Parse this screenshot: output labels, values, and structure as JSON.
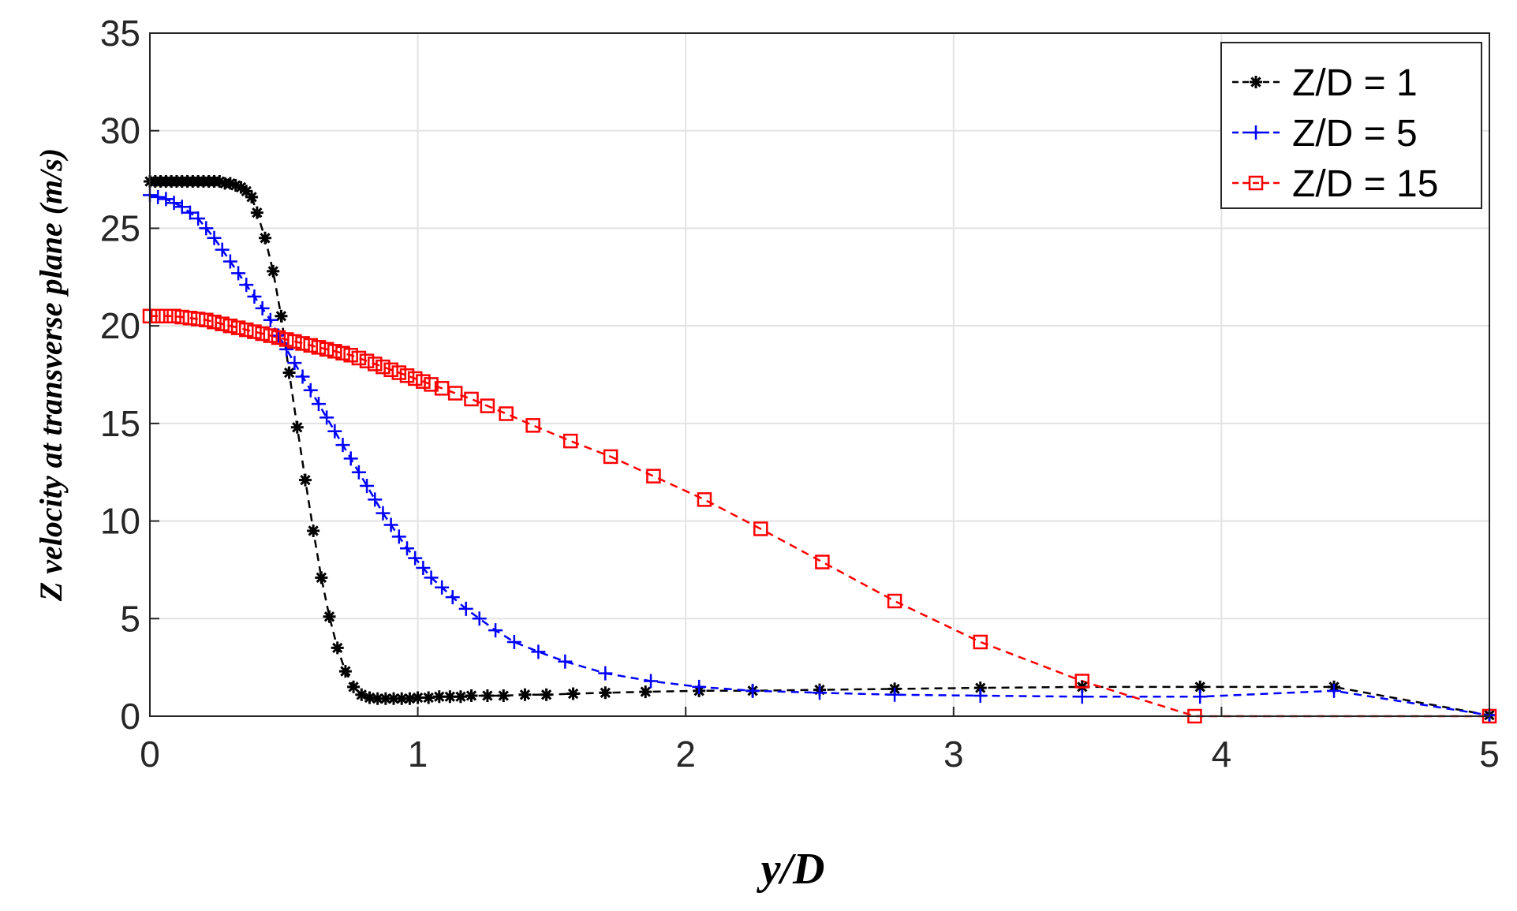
{
  "chart_data": {
    "type": "line",
    "title": "",
    "xlabel": "y/D",
    "ylabel": "Z velocity at transverse plane (m/s)",
    "xlim": [
      0,
      5
    ],
    "ylim": [
      0,
      35
    ],
    "xticks": [
      0,
      1,
      2,
      3,
      4,
      5
    ],
    "yticks": [
      0,
      5,
      10,
      15,
      20,
      25,
      30,
      35
    ],
    "grid": true,
    "legend_position": "top-right",
    "series": [
      {
        "name": "Z/D = 1",
        "color": "#000000",
        "marker": "asterisk",
        "x": [
          0,
          0.02,
          0.04,
          0.06,
          0.08,
          0.1,
          0.12,
          0.14,
          0.16,
          0.18,
          0.2,
          0.22,
          0.24,
          0.26,
          0.28,
          0.3,
          0.32,
          0.34,
          0.36,
          0.38,
          0.4,
          0.43,
          0.46,
          0.49,
          0.52,
          0.55,
          0.58,
          0.61,
          0.64,
          0.67,
          0.7,
          0.73,
          0.76,
          0.79,
          0.82,
          0.85,
          0.88,
          0.91,
          0.94,
          0.97,
          1.0,
          1.04,
          1.08,
          1.12,
          1.16,
          1.2,
          1.26,
          1.32,
          1.4,
          1.48,
          1.58,
          1.7,
          1.85,
          2.05,
          2.25,
          2.5,
          2.78,
          3.1,
          3.48,
          3.92,
          4.42,
          5.0
        ],
        "y": [
          27.4,
          27.4,
          27.4,
          27.4,
          27.4,
          27.4,
          27.4,
          27.4,
          27.4,
          27.4,
          27.4,
          27.4,
          27.4,
          27.4,
          27.3,
          27.3,
          27.2,
          27.1,
          26.9,
          26.6,
          25.8,
          24.5,
          22.8,
          20.5,
          17.6,
          14.8,
          12.1,
          9.5,
          7.1,
          5.1,
          3.5,
          2.3,
          1.5,
          1.1,
          0.95,
          0.9,
          0.9,
          0.9,
          0.9,
          0.9,
          0.95,
          0.95,
          1.0,
          1.0,
          1.0,
          1.05,
          1.05,
          1.05,
          1.1,
          1.1,
          1.15,
          1.2,
          1.25,
          1.3,
          1.3,
          1.35,
          1.4,
          1.45,
          1.5,
          1.5,
          1.5,
          0.05
        ]
      },
      {
        "name": "Z/D = 5",
        "color": "#0000ff",
        "marker": "plus",
        "x": [
          0,
          0.03,
          0.06,
          0.09,
          0.12,
          0.15,
          0.18,
          0.21,
          0.24,
          0.27,
          0.3,
          0.33,
          0.36,
          0.39,
          0.42,
          0.45,
          0.48,
          0.51,
          0.54,
          0.57,
          0.6,
          0.63,
          0.66,
          0.69,
          0.72,
          0.75,
          0.78,
          0.81,
          0.84,
          0.87,
          0.9,
          0.93,
          0.96,
          0.99,
          1.02,
          1.05,
          1.09,
          1.13,
          1.18,
          1.23,
          1.29,
          1.36,
          1.45,
          1.55,
          1.7,
          1.87,
          2.05,
          2.25,
          2.5,
          2.78,
          3.1,
          3.48,
          3.92,
          4.42,
          5.0
        ],
        "y": [
          26.7,
          26.6,
          26.5,
          26.3,
          26.1,
          25.8,
          25.5,
          25.0,
          24.5,
          23.9,
          23.3,
          22.7,
          22.1,
          21.5,
          20.9,
          20.3,
          19.5,
          18.8,
          18.1,
          17.4,
          16.7,
          16.0,
          15.3,
          14.6,
          13.9,
          13.2,
          12.5,
          11.8,
          11.1,
          10.4,
          9.8,
          9.2,
          8.6,
          8.1,
          7.6,
          7.1,
          6.6,
          6.1,
          5.5,
          5.0,
          4.4,
          3.8,
          3.3,
          2.8,
          2.2,
          1.8,
          1.5,
          1.3,
          1.2,
          1.1,
          1.05,
          1.0,
          1.0,
          1.3,
          0.05
        ]
      },
      {
        "name": "Z/D = 15",
        "color": "#ff0000",
        "marker": "square",
        "x": [
          0,
          0.03,
          0.06,
          0.09,
          0.12,
          0.15,
          0.18,
          0.21,
          0.24,
          0.27,
          0.3,
          0.33,
          0.36,
          0.39,
          0.42,
          0.45,
          0.48,
          0.51,
          0.54,
          0.57,
          0.6,
          0.63,
          0.66,
          0.69,
          0.72,
          0.75,
          0.78,
          0.81,
          0.84,
          0.87,
          0.9,
          0.93,
          0.96,
          0.99,
          1.02,
          1.05,
          1.09,
          1.14,
          1.2,
          1.26,
          1.33,
          1.43,
          1.57,
          1.72,
          1.88,
          2.07,
          2.28,
          2.51,
          2.78,
          3.1,
          3.48,
          3.9,
          5.0
        ],
        "y": [
          20.5,
          20.5,
          20.5,
          20.5,
          20.45,
          20.4,
          20.35,
          20.3,
          20.2,
          20.1,
          20.0,
          19.9,
          19.8,
          19.7,
          19.6,
          19.5,
          19.4,
          19.3,
          19.2,
          19.1,
          19.0,
          18.9,
          18.8,
          18.7,
          18.6,
          18.5,
          18.35,
          18.2,
          18.05,
          17.9,
          17.75,
          17.6,
          17.45,
          17.3,
          17.15,
          17.0,
          16.8,
          16.55,
          16.25,
          15.9,
          15.5,
          14.9,
          14.1,
          13.3,
          12.3,
          11.1,
          9.6,
          7.9,
          5.9,
          3.8,
          1.8,
          0.0,
          0.0
        ]
      }
    ]
  }
}
